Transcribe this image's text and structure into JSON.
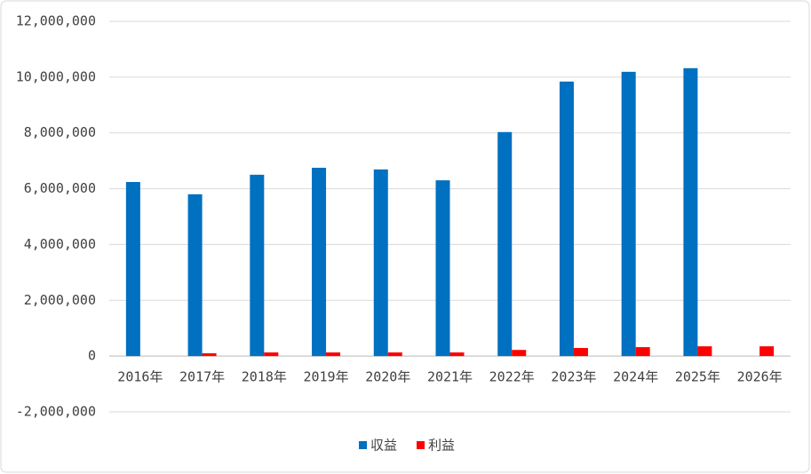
{
  "chart_data": {
    "type": "bar",
    "categories": [
      "2016年",
      "2017年",
      "2018年",
      "2019年",
      "2020年",
      "2021年",
      "2022年",
      "2023年",
      "2024年",
      "2025年",
      "2026年"
    ],
    "series": [
      {
        "name": "収益",
        "color": "#0070c0",
        "values": [
          6240000,
          5800000,
          6500000,
          6750000,
          6690000,
          6300000,
          8030000,
          9840000,
          10190000,
          10320000,
          null
        ]
      },
      {
        "name": "利益",
        "color": "#ff0000",
        "values": [
          null,
          100000,
          130000,
          130000,
          130000,
          130000,
          220000,
          290000,
          320000,
          350000,
          350000
        ]
      }
    ],
    "ylim": [
      -2000000,
      12000000
    ],
    "yticks": [
      {
        "value": -2000000,
        "label": "-2,000,000"
      },
      0,
      {
        "value": 2000000,
        "label": "2,000,000"
      },
      {
        "value": 4000000,
        "label": "4,000,000"
      },
      {
        "value": 6000000,
        "label": "6,000,000"
      },
      {
        "value": 8000000,
        "label": "8,000,000"
      },
      {
        "value": 10000000,
        "label": "10,000,000"
      },
      {
        "value": 12000000,
        "label": "12,000,000"
      }
    ],
    "grid": true
  }
}
